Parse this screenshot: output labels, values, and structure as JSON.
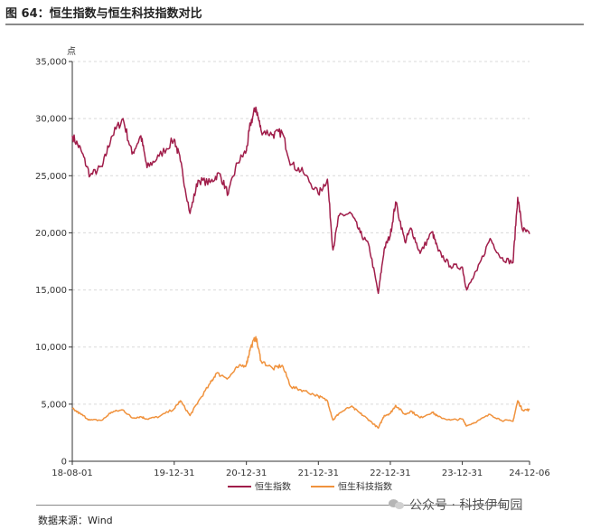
{
  "title": "图 64：恒生指数与恒生科技指数对比",
  "source": "数据来源：Wind",
  "watermark": "公众号 · 科技伊甸园",
  "watermark_icon": "wechat-icon",
  "chart_data": {
    "type": "line",
    "unit_label": "点",
    "x_ticks": [
      "18-08-01",
      "19-12-31",
      "20-12-31",
      "21-12-31",
      "22-12-31",
      "23-12-31",
      "24-12-06"
    ],
    "y_ticks": [
      "0",
      "5,000",
      "10,000",
      "15,000",
      "20,000",
      "25,000",
      "30,000",
      "35,000"
    ],
    "ylim": [
      0,
      35000
    ],
    "x_range": [
      "2018-08-01",
      "2024-12-06"
    ],
    "grid": "horizontal dashed",
    "legend_position": "bottom",
    "series": [
      {
        "name": "恒生指数",
        "color": "#a01d4a",
        "points": [
          [
            "2018-08-01",
            28500
          ],
          [
            "2018-09-15",
            27200
          ],
          [
            "2018-10-30",
            25000
          ],
          [
            "2018-12-31",
            25800
          ],
          [
            "2019-02-15",
            28400
          ],
          [
            "2019-04-15",
            30000
          ],
          [
            "2019-05-31",
            26900
          ],
          [
            "2019-07-15",
            28500
          ],
          [
            "2019-08-15",
            25700
          ],
          [
            "2019-10-15",
            26700
          ],
          [
            "2019-12-31",
            28200
          ],
          [
            "2020-01-31",
            26300
          ],
          [
            "2020-03-20",
            21700
          ],
          [
            "2020-04-30",
            24600
          ],
          [
            "2020-06-30",
            24400
          ],
          [
            "2020-08-15",
            25200
          ],
          [
            "2020-09-30",
            23400
          ],
          [
            "2020-11-15",
            26100
          ],
          [
            "2020-12-31",
            27200
          ],
          [
            "2021-01-20",
            29500
          ],
          [
            "2021-02-17",
            31000
          ],
          [
            "2021-03-15",
            29000
          ],
          [
            "2021-05-15",
            28600
          ],
          [
            "2021-06-30",
            28800
          ],
          [
            "2021-08-15",
            26000
          ],
          [
            "2021-10-15",
            25300
          ],
          [
            "2021-12-31",
            23400
          ],
          [
            "2022-02-15",
            24700
          ],
          [
            "2022-03-15",
            18500
          ],
          [
            "2022-04-15",
            21500
          ],
          [
            "2022-06-15",
            21700
          ],
          [
            "2022-07-31",
            20000
          ],
          [
            "2022-09-15",
            18800
          ],
          [
            "2022-10-31",
            14700
          ],
          [
            "2022-11-30",
            18600
          ],
          [
            "2022-12-31",
            19800
          ],
          [
            "2023-01-27",
            22700
          ],
          [
            "2023-03-15",
            19200
          ],
          [
            "2023-04-15",
            20400
          ],
          [
            "2023-05-31",
            18200
          ],
          [
            "2023-07-31",
            20100
          ],
          [
            "2023-08-31",
            18400
          ],
          [
            "2023-10-31",
            17100
          ],
          [
            "2023-12-31",
            17000
          ],
          [
            "2024-01-22",
            15000
          ],
          [
            "2024-03-15",
            16700
          ],
          [
            "2024-05-20",
            19500
          ],
          [
            "2024-07-15",
            17800
          ],
          [
            "2024-09-13",
            17400
          ],
          [
            "2024-10-07",
            23100
          ],
          [
            "2024-10-31",
            20300
          ],
          [
            "2024-12-06",
            19900
          ]
        ]
      },
      {
        "name": "恒生科技指数",
        "color": "#f0923d",
        "points": [
          [
            "2018-08-01",
            4600
          ],
          [
            "2018-09-15",
            4100
          ],
          [
            "2018-10-30",
            3600
          ],
          [
            "2018-12-31",
            3600
          ],
          [
            "2019-02-15",
            4300
          ],
          [
            "2019-04-15",
            4500
          ],
          [
            "2019-05-31",
            3800
          ],
          [
            "2019-07-15",
            3900
          ],
          [
            "2019-08-15",
            3700
          ],
          [
            "2019-10-15",
            3900
          ],
          [
            "2019-12-31",
            4600
          ],
          [
            "2020-01-31",
            5300
          ],
          [
            "2020-03-20",
            4000
          ],
          [
            "2020-04-30",
            5200
          ],
          [
            "2020-06-30",
            6800
          ],
          [
            "2020-07-31",
            7700
          ],
          [
            "2020-09-30",
            7300
          ],
          [
            "2020-11-15",
            8200
          ],
          [
            "2020-12-31",
            8500
          ],
          [
            "2021-01-20",
            9900
          ],
          [
            "2021-02-17",
            10900
          ],
          [
            "2021-03-15",
            8800
          ],
          [
            "2021-05-15",
            8100
          ],
          [
            "2021-06-30",
            8400
          ],
          [
            "2021-08-15",
            6500
          ],
          [
            "2021-10-15",
            6200
          ],
          [
            "2021-12-31",
            5700
          ],
          [
            "2022-02-15",
            5300
          ],
          [
            "2022-03-15",
            3600
          ],
          [
            "2022-04-15",
            4200
          ],
          [
            "2022-06-15",
            4800
          ],
          [
            "2022-07-31",
            4200
          ],
          [
            "2022-09-15",
            3600
          ],
          [
            "2022-10-31",
            2900
          ],
          [
            "2022-11-30",
            4000
          ],
          [
            "2022-12-31",
            4200
          ],
          [
            "2023-01-27",
            4900
          ],
          [
            "2023-03-15",
            4100
          ],
          [
            "2023-04-15",
            4400
          ],
          [
            "2023-05-31",
            3800
          ],
          [
            "2023-07-31",
            4300
          ],
          [
            "2023-08-31",
            3900
          ],
          [
            "2023-10-31",
            3600
          ],
          [
            "2023-12-31",
            3700
          ],
          [
            "2024-01-22",
            3100
          ],
          [
            "2024-03-15",
            3500
          ],
          [
            "2024-05-20",
            4100
          ],
          [
            "2024-07-15",
            3600
          ],
          [
            "2024-09-13",
            3500
          ],
          [
            "2024-10-07",
            5300
          ],
          [
            "2024-10-31",
            4500
          ],
          [
            "2024-12-06",
            4500
          ]
        ]
      }
    ]
  }
}
